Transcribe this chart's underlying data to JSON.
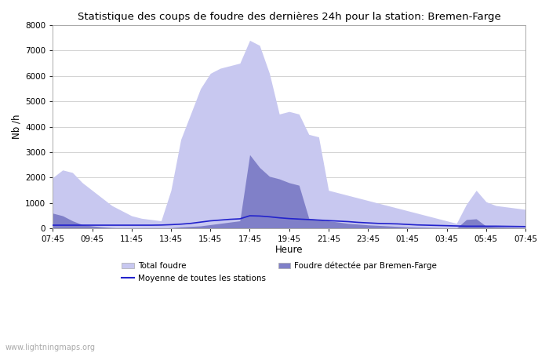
{
  "title": "Statistique des coups de foudre des dernières 24h pour la station: Bremen-Farge",
  "xlabel": "Heure",
  "ylabel": "Nb /h",
  "xlim": [
    0,
    48
  ],
  "ylim": [
    0,
    8000
  ],
  "yticks": [
    0,
    1000,
    2000,
    3000,
    4000,
    5000,
    6000,
    7000,
    8000
  ],
  "xtick_labels": [
    "07:45",
    "09:45",
    "11:45",
    "13:45",
    "15:45",
    "17:45",
    "19:45",
    "21:45",
    "23:45",
    "01:45",
    "03:45",
    "05:45",
    "07:45"
  ],
  "watermark": "www.lightningmaps.org",
  "legend_entries": [
    "Total foudre",
    "Moyenne de toutes les stations",
    "Foudre détectée par Bremen-Farge"
  ],
  "total_color": "#c8c8f0",
  "detected_color": "#8080c8",
  "mean_color": "#2222cc",
  "mean_thin_color": "#6666cc",
  "background_color": "#ffffff",
  "plot_bg_color": "#ffffff",
  "x_total": [
    0,
    1,
    2,
    3,
    4,
    5,
    6,
    7,
    8,
    9,
    10,
    11,
    12,
    13,
    14,
    15,
    16,
    17,
    18,
    19,
    20,
    21,
    22,
    23,
    24,
    25,
    26,
    27,
    28,
    29,
    30,
    31,
    32,
    33,
    34,
    35,
    36,
    37,
    38,
    39,
    40,
    41,
    42,
    43,
    44,
    45,
    46,
    47,
    48
  ],
  "y_total": [
    2000,
    2300,
    2200,
    1800,
    1500,
    1200,
    900,
    700,
    500,
    400,
    350,
    300,
    1500,
    3500,
    4500,
    5500,
    6100,
    6300,
    6400,
    6500,
    7400,
    7200,
    6100,
    4500,
    4600,
    4500,
    3700,
    3600,
    1500,
    1400,
    1300,
    1200,
    1100,
    1000,
    900,
    800,
    700,
    600,
    500,
    400,
    300,
    200,
    950,
    1500,
    1050,
    900,
    850,
    800,
    750
  ],
  "y_detected": [
    600,
    500,
    300,
    150,
    100,
    60,
    30,
    15,
    10,
    8,
    8,
    10,
    30,
    60,
    80,
    100,
    150,
    200,
    250,
    300,
    2900,
    2400,
    2050,
    1950,
    1800,
    1700,
    400,
    350,
    300,
    250,
    200,
    170,
    140,
    120,
    100,
    80,
    60,
    50,
    40,
    30,
    20,
    10,
    350,
    380,
    90,
    70,
    50,
    40,
    30
  ],
  "y_mean": [
    130,
    130,
    130,
    130,
    130,
    130,
    130,
    130,
    130,
    130,
    130,
    135,
    150,
    170,
    200,
    250,
    300,
    330,
    360,
    380,
    500,
    490,
    460,
    420,
    390,
    370,
    350,
    330,
    310,
    290,
    270,
    240,
    220,
    200,
    190,
    180,
    160,
    140,
    130,
    120,
    110,
    100,
    90,
    90,
    90,
    90,
    85,
    80,
    75
  ]
}
